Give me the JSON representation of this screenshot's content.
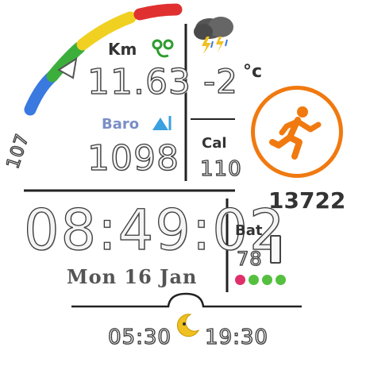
{
  "distance": {
    "label": "Km",
    "value": "11.63"
  },
  "barometer": {
    "label": "Baro",
    "value": "1098"
  },
  "weather": {
    "icon": "thunderstorm-icon",
    "temperature": "-2",
    "unit": "°c"
  },
  "calories": {
    "label": "Cal",
    "value": "110"
  },
  "activity": {
    "icon": "running-person-icon",
    "accent": "#f07a10"
  },
  "steps": {
    "value": "13722"
  },
  "time": {
    "value": "08:49:02",
    "date": "Mon 16 Jan"
  },
  "battery": {
    "label": "Bat",
    "value": "78",
    "dots": [
      "#e0306a",
      "#55c040",
      "#55c040",
      "#55c040"
    ]
  },
  "sun": {
    "sunrise": "05:30",
    "sunset": "19:30",
    "icon": "moon-icon"
  },
  "arc_gauge": {
    "value": "107",
    "colors": [
      "#3a7ae0",
      "#3cae3c",
      "#f0d020",
      "#e03030"
    ]
  }
}
